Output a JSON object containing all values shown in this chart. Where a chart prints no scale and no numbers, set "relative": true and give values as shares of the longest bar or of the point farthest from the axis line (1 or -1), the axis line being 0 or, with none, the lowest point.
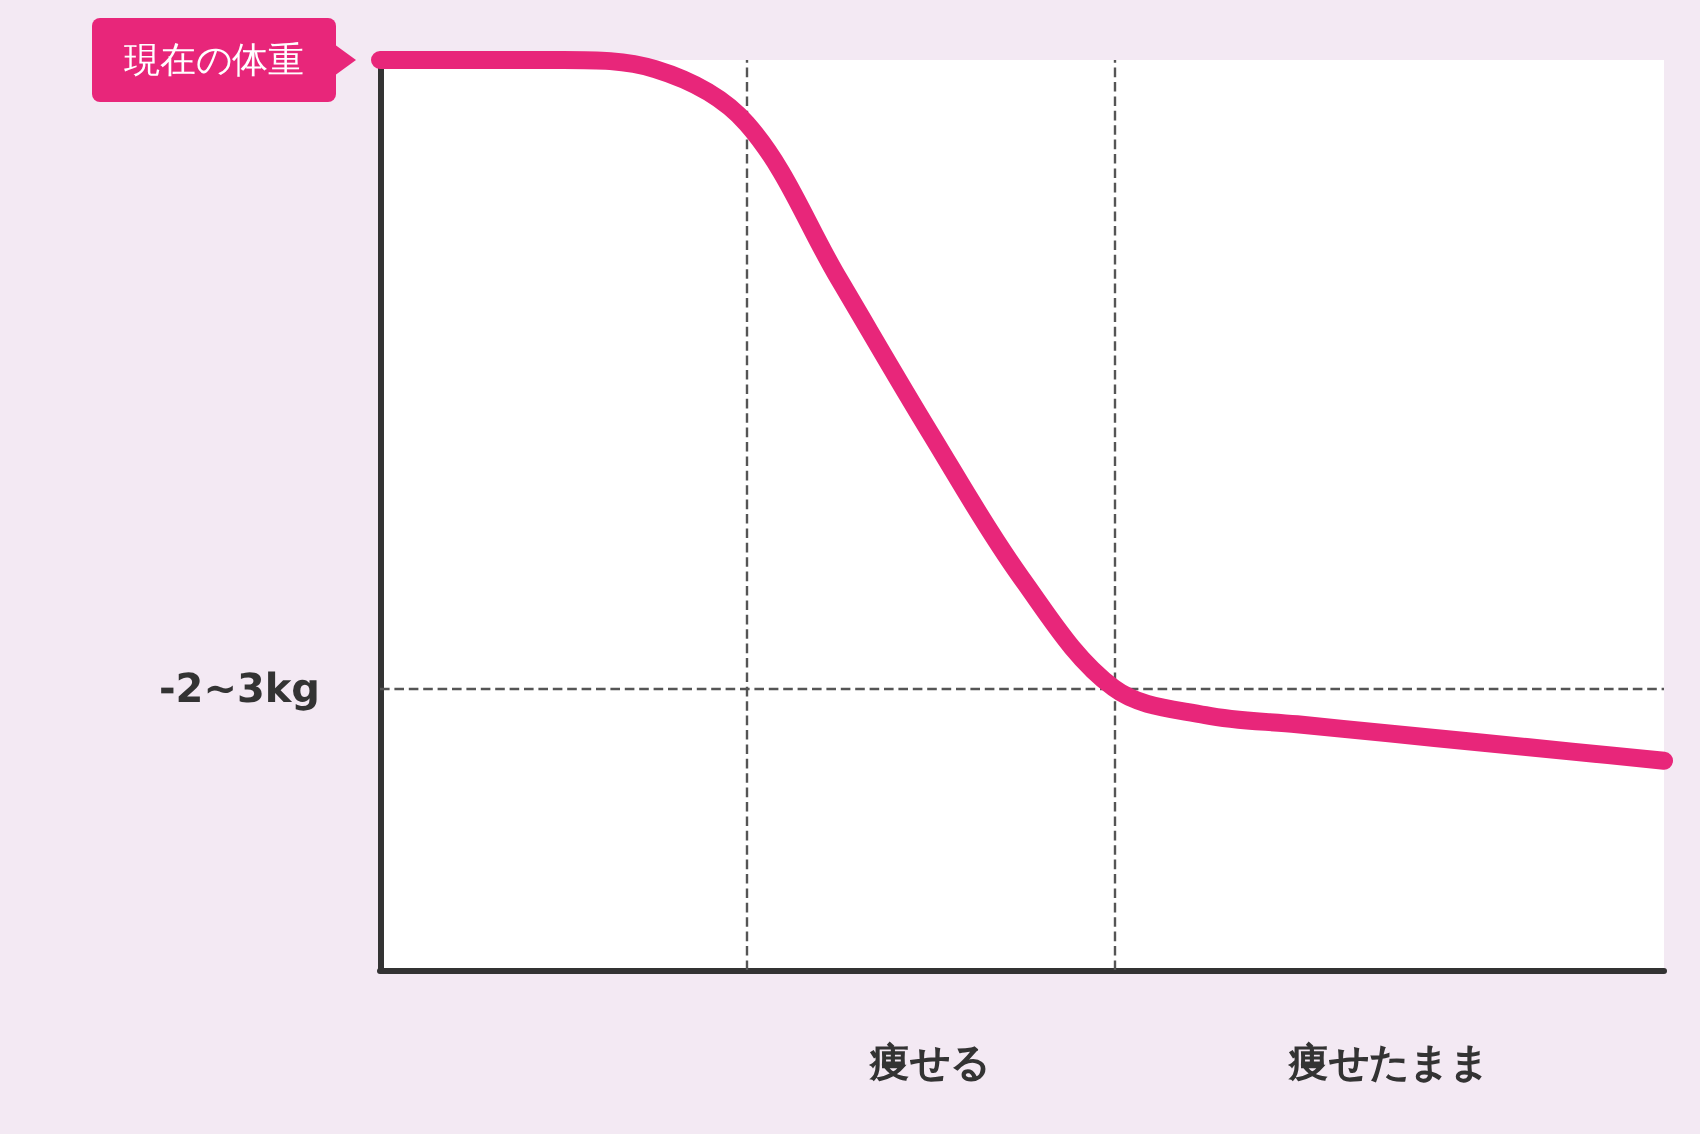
{
  "chart_data": {
    "type": "line",
    "relative": true,
    "categories": [
      null,
      null,
      null,
      null,
      null,
      null,
      "痩せる",
      null,
      null,
      null,
      null,
      "痩せたまま",
      null,
      null,
      null
    ],
    "series": [
      {
        "color": "#e8267a",
        "values": [
          1,
          1,
          1,
          0.99,
          0.93,
          0.76,
          0.59,
          0.43,
          0.31,
          0.28,
          0.27,
          0.26,
          0.25,
          0.24,
          0.23
        ]
      }
    ],
    "ref_lines": [
      {
        "axis": "y",
        "value": 0.31,
        "label": "-2~3kg",
        "color": "#555555",
        "line_style": "dashed"
      }
    ],
    "annotations": [
      "現在の体重"
    ],
    "line_style": "solid"
  }
}
